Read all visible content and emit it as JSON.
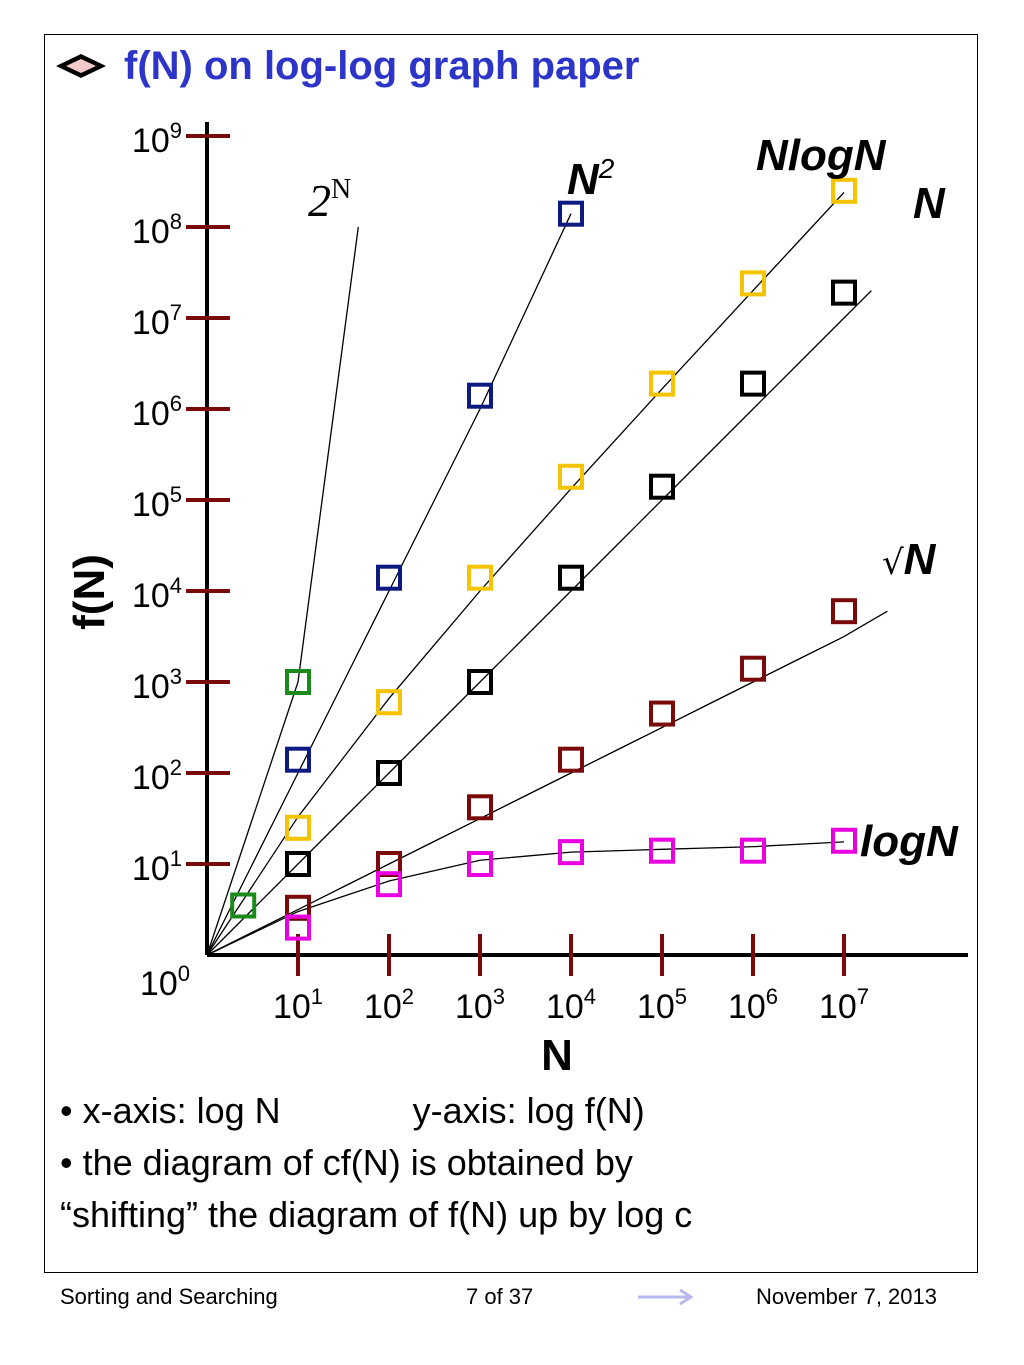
{
  "slide": {
    "title": "f(N) on log-log graph paper",
    "bullet_icon": "diamond-bullet-icon"
  },
  "chart_data": {
    "type": "line",
    "x_scale": "log",
    "y_scale": "log",
    "xlabel": "N",
    "ylabel": "f(N)",
    "x_ticks": [
      {
        "base": "10",
        "exp": "1",
        "value": 10
      },
      {
        "base": "10",
        "exp": "2",
        "value": 100
      },
      {
        "base": "10",
        "exp": "3",
        "value": 1000
      },
      {
        "base": "10",
        "exp": "4",
        "value": 10000
      },
      {
        "base": "10",
        "exp": "5",
        "value": 100000
      },
      {
        "base": "10",
        "exp": "6",
        "value": 1000000
      },
      {
        "base": "10",
        "exp": "7",
        "value": 10000000
      }
    ],
    "y_ticks": [
      {
        "base": "10",
        "exp": "0",
        "value": 1
      },
      {
        "base": "10",
        "exp": "1",
        "value": 10
      },
      {
        "base": "10",
        "exp": "2",
        "value": 100
      },
      {
        "base": "10",
        "exp": "3",
        "value": 1000
      },
      {
        "base": "10",
        "exp": "4",
        "value": 10000
      },
      {
        "base": "10",
        "exp": "5",
        "value": 100000
      },
      {
        "base": "10",
        "exp": "6",
        "value": 1000000
      },
      {
        "base": "10",
        "exp": "7",
        "value": 10000000
      },
      {
        "base": "10",
        "exp": "8",
        "value": 100000000
      },
      {
        "base": "10",
        "exp": "9",
        "value": 1000000000
      }
    ],
    "xlim": [
      1,
      100000000
    ],
    "ylim": [
      1,
      1000000000
    ],
    "series": [
      {
        "id": "exp2",
        "label_main": "2",
        "label_sup": "N",
        "color": "#1a8a1a",
        "markers": [
          [
            2.5,
            3.5
          ],
          [
            10,
            1000
          ]
        ],
        "curve": [
          [
            1,
            1
          ],
          [
            10,
            1000
          ],
          [
            46,
            100000000
          ]
        ]
      },
      {
        "id": "n2",
        "label_main": "N",
        "label_sup": "2",
        "color": "#0d1a80",
        "markers": [
          [
            10,
            140
          ],
          [
            100,
            14000
          ],
          [
            1000,
            1400000
          ],
          [
            10000,
            140000000
          ]
        ],
        "curve": [
          [
            1,
            1
          ],
          [
            10,
            100
          ],
          [
            100,
            10000
          ],
          [
            1000,
            1000000
          ],
          [
            10000,
            140000000
          ]
        ]
      },
      {
        "id": "nlogn",
        "label_main": "NlogN",
        "color": "#f5c400",
        "markers": [
          [
            10,
            25
          ],
          [
            100,
            600
          ],
          [
            1000,
            14000
          ],
          [
            10000,
            180000
          ],
          [
            100000,
            1900000
          ],
          [
            1000000,
            24000000
          ],
          [
            10000000,
            250000000
          ]
        ],
        "curve": [
          [
            1,
            1
          ],
          [
            10,
            33
          ],
          [
            100,
            660
          ],
          [
            1000,
            10000
          ],
          [
            10000,
            133000
          ],
          [
            100000,
            1660000
          ],
          [
            1000000,
            20000000
          ],
          [
            10000000,
            240000000
          ]
        ]
      },
      {
        "id": "n",
        "label_main": "N",
        "color": "#000000",
        "markers": [
          [
            10,
            10
          ],
          [
            100,
            100
          ],
          [
            1000,
            1000
          ],
          [
            10000,
            14000
          ],
          [
            100000,
            140000
          ],
          [
            1000000,
            1900000
          ],
          [
            10000000,
            19000000
          ]
        ],
        "curve": [
          [
            1,
            1
          ],
          [
            10,
            10
          ],
          [
            100,
            100
          ],
          [
            1000,
            1000
          ],
          [
            10000,
            10000
          ],
          [
            100000,
            100000
          ],
          [
            1000000,
            1000000
          ],
          [
            10000000,
            10000000
          ],
          [
            20000000,
            20000000
          ]
        ]
      },
      {
        "id": "sqrtn",
        "label_main": "N",
        "label_prefix": "√",
        "color": "#7a0a0a",
        "markers": [
          [
            10,
            3.3
          ],
          [
            100,
            10
          ],
          [
            1000,
            42
          ],
          [
            10000,
            140
          ],
          [
            100000,
            450
          ],
          [
            1000000,
            1400
          ],
          [
            10000000,
            6000
          ]
        ],
        "curve": [
          [
            1,
            1
          ],
          [
            10,
            3.16
          ],
          [
            100,
            10
          ],
          [
            1000,
            31.6
          ],
          [
            10000,
            100
          ],
          [
            100000,
            316
          ],
          [
            1000000,
            1000
          ],
          [
            10000000,
            3160
          ],
          [
            30000000,
            6000
          ]
        ]
      },
      {
        "id": "logn",
        "label_main": "logN",
        "color": "#e800e0",
        "markers": [
          [
            10,
            2
          ],
          [
            100,
            6
          ],
          [
            1000,
            10
          ],
          [
            10000,
            13.5
          ],
          [
            100000,
            14
          ],
          [
            1000000,
            14
          ],
          [
            10000000,
            18
          ]
        ],
        "curve": [
          [
            1,
            1
          ],
          [
            10,
            3
          ],
          [
            100,
            6.5
          ],
          [
            1000,
            11
          ],
          [
            10000,
            13.5
          ],
          [
            100000,
            14.5
          ],
          [
            1000000,
            15.5
          ],
          [
            10000000,
            17.5
          ]
        ]
      }
    ]
  },
  "notes": {
    "line1_left": "• x-axis: log N",
    "line1_right": "y-axis: log f(N)",
    "line2": "• the diagram of cf(N) is obtained by",
    "line3": "“shifting” the diagram of f(N) up by log c"
  },
  "footer": {
    "left": "Sorting and Searching",
    "center": "7 of 37",
    "next_icon": "right-arrow-icon",
    "right": "November 7, 2013"
  }
}
